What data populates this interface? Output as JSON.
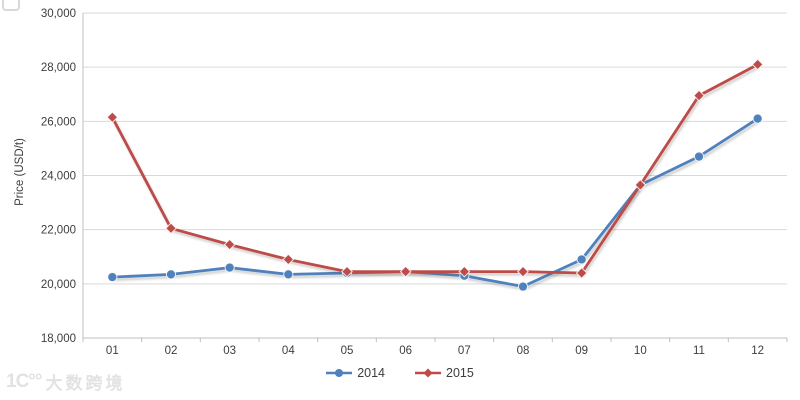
{
  "chart_data": {
    "type": "line",
    "title": "",
    "xlabel": "",
    "ylabel": "Price (USD/t)",
    "categories": [
      "01",
      "02",
      "03",
      "04",
      "05",
      "06",
      "07",
      "08",
      "09",
      "10",
      "11",
      "12"
    ],
    "series": [
      {
        "name": "2014",
        "color": "#4F81BD",
        "marker": "circle",
        "values": [
          20250,
          20350,
          20600,
          20350,
          20400,
          20450,
          20300,
          19900,
          20900,
          23650,
          24700,
          26100
        ]
      },
      {
        "name": "2015",
        "color": "#BE4B48",
        "marker": "diamond",
        "values": [
          26150,
          22050,
          21450,
          20900,
          20450,
          20450,
          20450,
          20450,
          20400,
          23650,
          26950,
          28100
        ]
      }
    ],
    "ylim": [
      18000,
      30000
    ],
    "yticks": [
      {
        "value": 18000,
        "label": "18,000"
      },
      {
        "value": 20000,
        "label": "20,000"
      },
      {
        "value": 22000,
        "label": "22,000"
      },
      {
        "value": 24000,
        "label": "24,000"
      },
      {
        "value": 26000,
        "label": "26,000"
      },
      {
        "value": 28000,
        "label": "28,000"
      },
      {
        "value": 30000,
        "label": "30,000"
      }
    ],
    "grid": true,
    "legend_position": "bottom-center"
  },
  "watermark": {
    "logo": "1C°°",
    "text": "大数跨境"
  },
  "colors": {
    "axis": "#b9c0c7",
    "gridline": "#d9d9d9",
    "tick_text": "#3d3d3d",
    "background": "#ffffff"
  }
}
